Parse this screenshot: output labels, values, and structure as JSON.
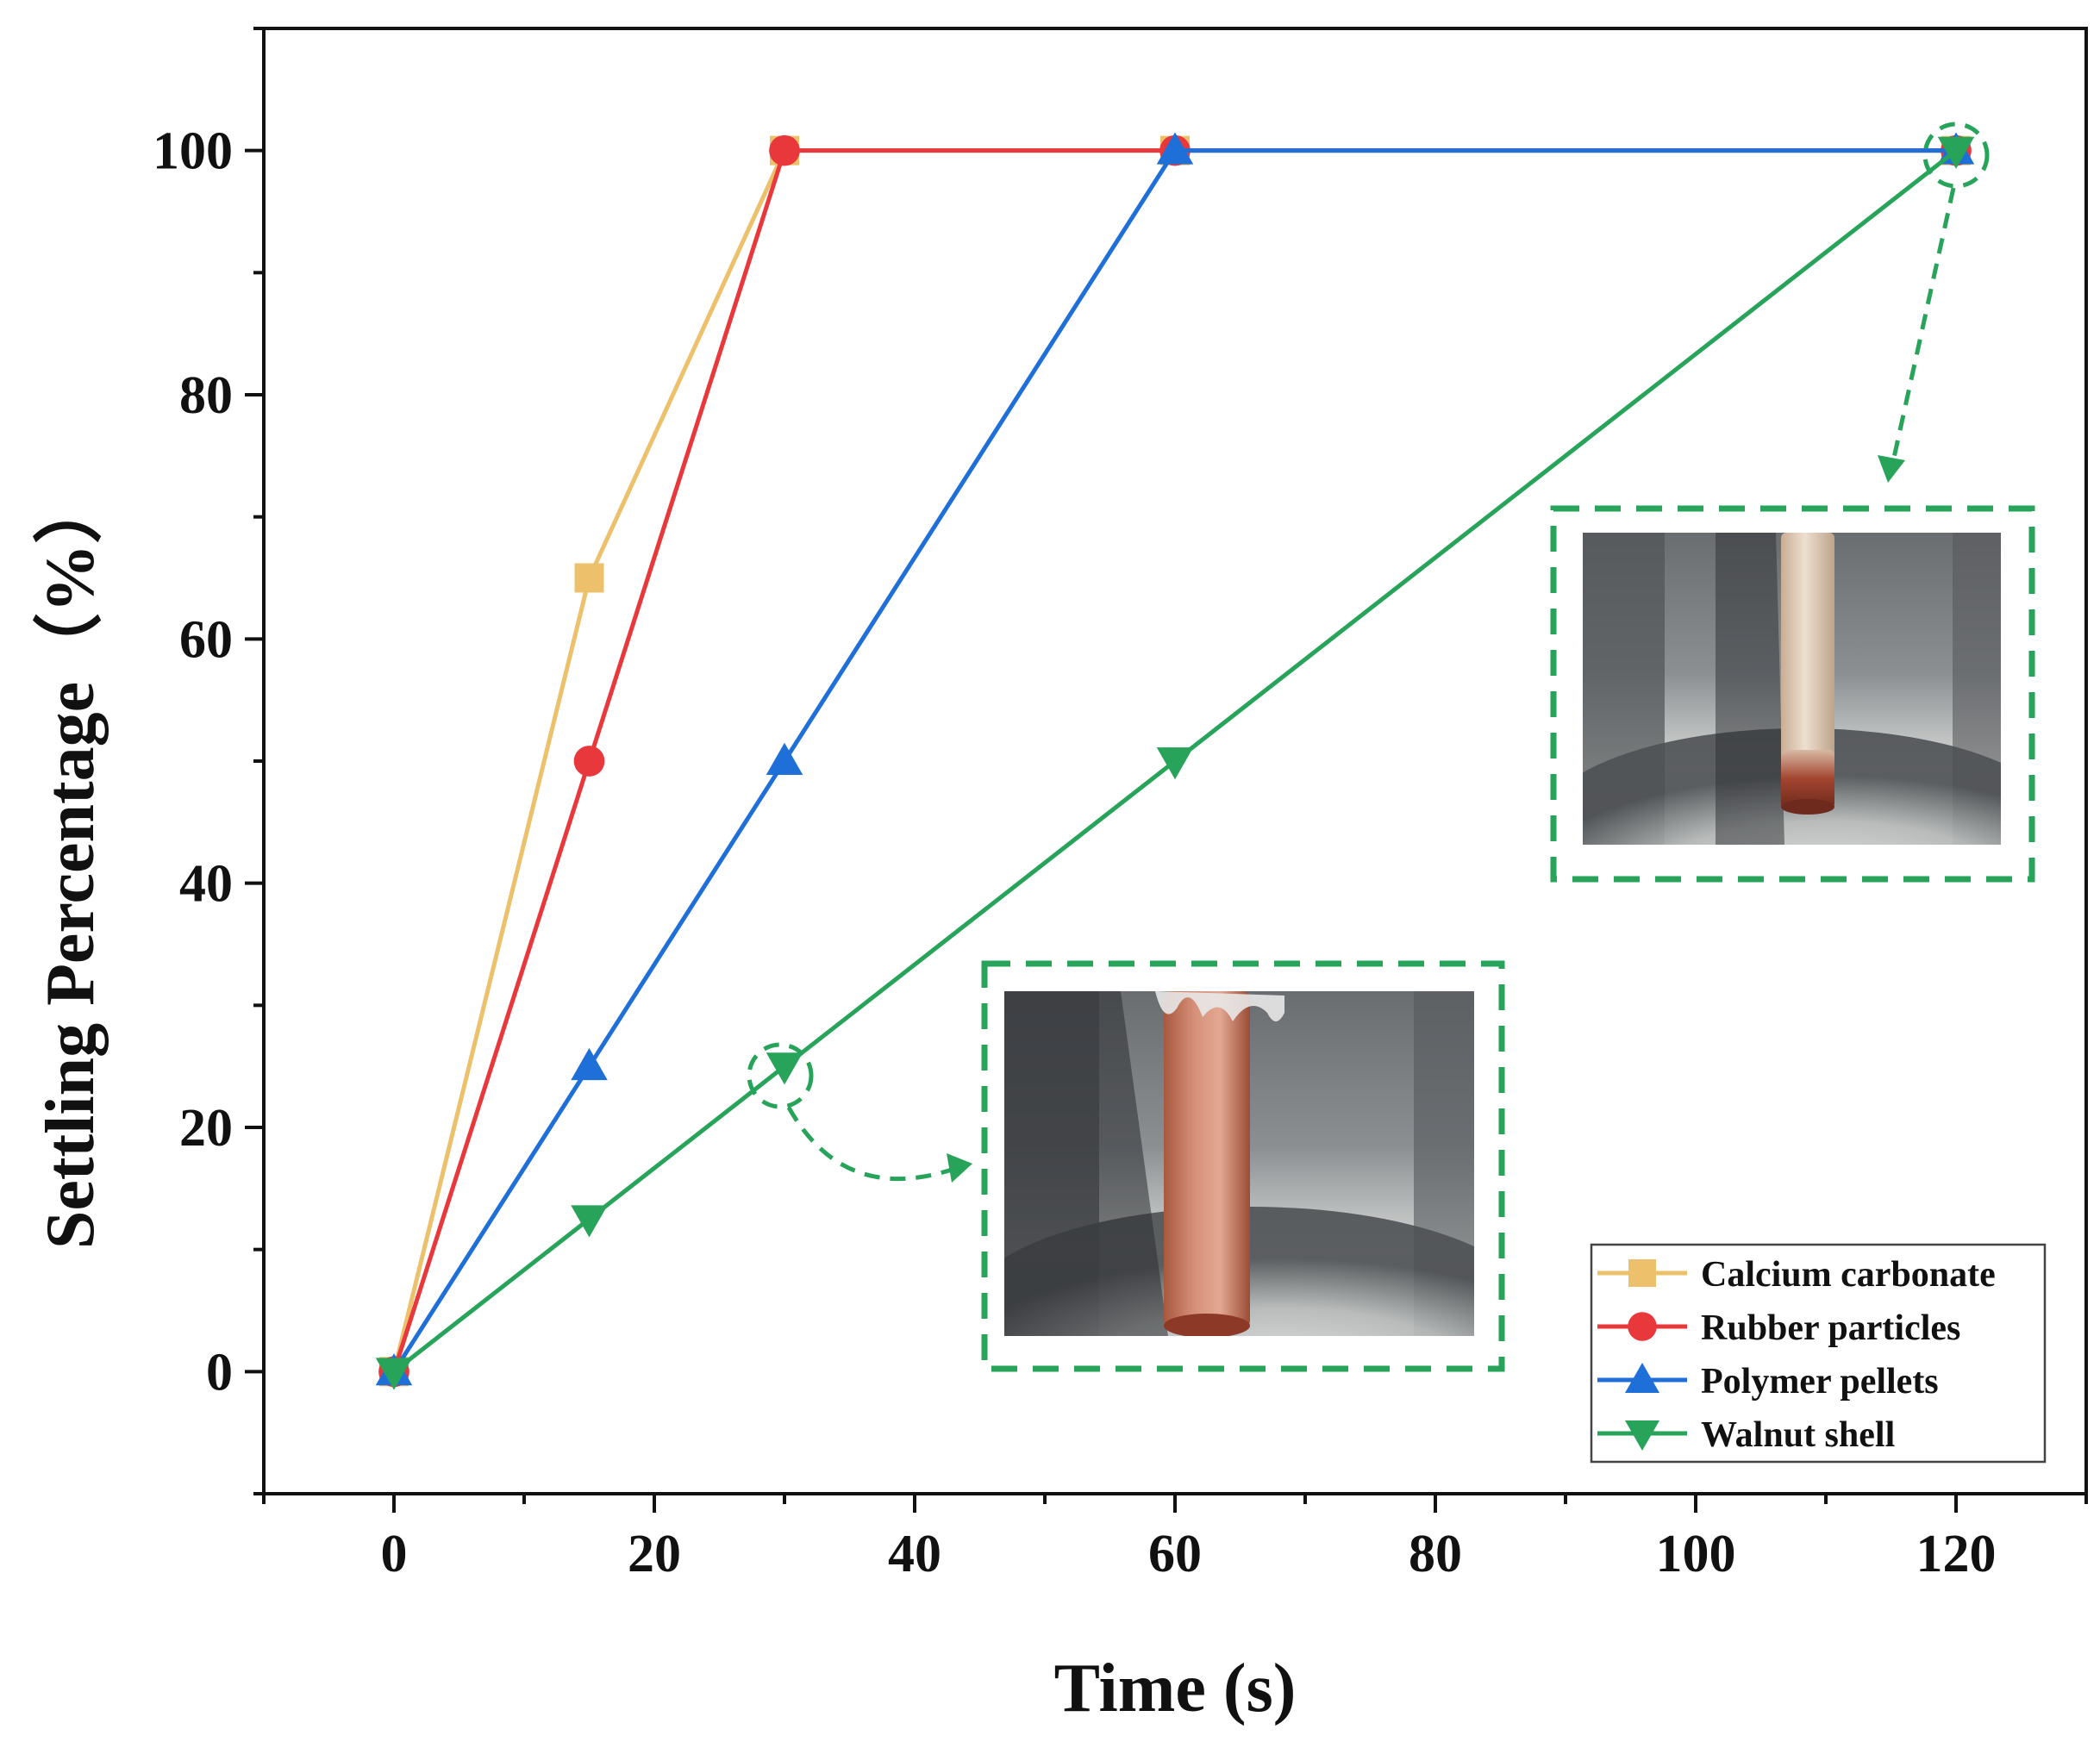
{
  "chart_data": {
    "type": "line",
    "xlabel": "Time (s)",
    "ylabel": "Settling Percentage（%）",
    "xlim": [
      -10,
      130
    ],
    "ylim": [
      -10,
      110
    ],
    "xticks": [
      0,
      20,
      40,
      60,
      80,
      100,
      120
    ],
    "yticks": [
      0,
      20,
      40,
      60,
      80,
      100
    ],
    "grid": false,
    "legend_position": "bottom-right",
    "series": [
      {
        "name": "Calcium carbonate",
        "marker": "square",
        "color": "#EDC06B",
        "x": [
          0,
          15,
          30,
          60,
          120
        ],
        "y": [
          0,
          65,
          100,
          100,
          100
        ]
      },
      {
        "name": "Rubber particles",
        "marker": "circle",
        "color": "#E8383B",
        "x": [
          0,
          15,
          30,
          60,
          120
        ],
        "y": [
          0,
          50,
          100,
          100,
          100
        ]
      },
      {
        "name": "Polymer pellets",
        "marker": "triangle-up",
        "color": "#1F6FD9",
        "x": [
          0,
          15,
          30,
          60,
          120
        ],
        "y": [
          0,
          25,
          50,
          100,
          100
        ]
      },
      {
        "name": "Walnut shell",
        "marker": "triangle-down",
        "color": "#27A35A",
        "x": [
          0,
          15,
          30,
          60,
          120
        ],
        "y": [
          0,
          12.5,
          25,
          50,
          100
        ]
      }
    ],
    "annotations": [
      {
        "type": "photo-inset",
        "target": {
          "series": "Walnut shell",
          "x": 30,
          "y": 25
        },
        "description_color": "#27A35A"
      },
      {
        "type": "photo-inset",
        "target": {
          "series": "Walnut shell",
          "x": 120,
          "y": 100
        },
        "description_color": "#27A35A"
      }
    ]
  }
}
